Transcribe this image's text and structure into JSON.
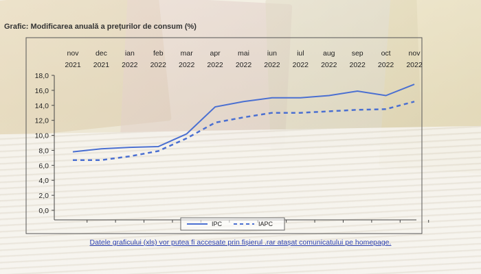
{
  "title": "Grafic: Modificarea anuală a prețurilor de consum (%)",
  "footnote": "Datele graficului (xls) vor putea fi accesate prin fișierul .rar  atașat comunicatului pe homepage.",
  "colors": {
    "series_line": "#4a6fd1",
    "frame": "#555555"
  },
  "chart_data": {
    "type": "line",
    "categories": [
      [
        "nov",
        "2021"
      ],
      [
        "dec",
        "2021"
      ],
      [
        "ian",
        "2022"
      ],
      [
        "feb",
        "2022"
      ],
      [
        "mar",
        "2022"
      ],
      [
        "apr",
        "2022"
      ],
      [
        "mai",
        "2022"
      ],
      [
        "iun",
        "2022"
      ],
      [
        "iul",
        "2022"
      ],
      [
        "aug",
        "2022"
      ],
      [
        "sep",
        "2022"
      ],
      [
        "oct",
        "2022"
      ],
      [
        "nov",
        "2022"
      ]
    ],
    "ylim": [
      0,
      18
    ],
    "yticks": [
      "0,0",
      "2,0",
      "4,0",
      "6,0",
      "8,0",
      "10,0",
      "12,0",
      "14,0",
      "16,0",
      "18,0"
    ],
    "x_tick_position": "top",
    "legend_position": "bottom-center",
    "series": [
      {
        "name": "IPC",
        "style": "solid",
        "values": [
          7.8,
          8.2,
          8.4,
          8.5,
          10.2,
          13.8,
          14.5,
          15.0,
          15.0,
          15.3,
          15.9,
          15.3,
          16.8
        ]
      },
      {
        "name": "IAPC",
        "style": "dashed",
        "values": [
          6.7,
          6.7,
          7.2,
          7.9,
          9.6,
          11.7,
          12.4,
          13.0,
          13.0,
          13.2,
          13.4,
          13.5,
          14.5
        ]
      }
    ]
  }
}
